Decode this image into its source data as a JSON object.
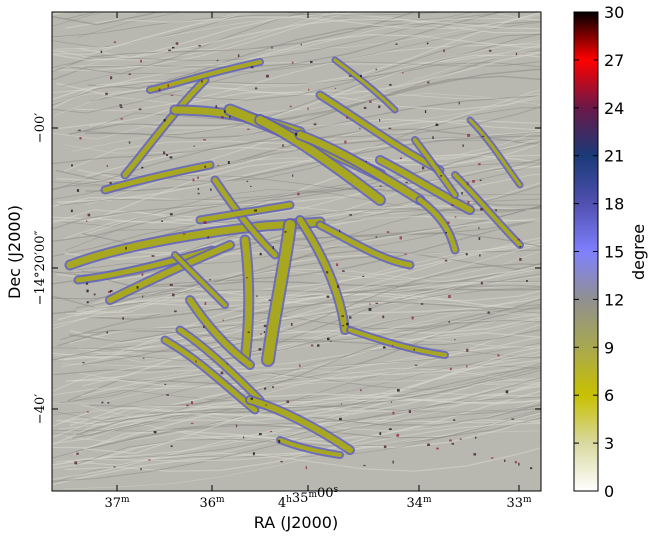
{
  "chart_data": {
    "type": "heatmap",
    "title": "",
    "xlabel": "RA (J2000)",
    "ylabel": "Dec (J2000)",
    "x_ticks": [
      {
        "label": "37",
        "sup": "m"
      },
      {
        "label": "36",
        "sup": "m"
      },
      {
        "label": "4",
        "sup": "h",
        "label2": "35",
        "sup2": "m",
        "label3": "00",
        "sup3": "s"
      },
      {
        "label": "34",
        "sup": "m"
      },
      {
        "label": "33",
        "sup": "m"
      }
    ],
    "y_ticks": [
      {
        "label": "−00′"
      },
      {
        "label": "−14°20′00″"
      },
      {
        "label": "−40′"
      }
    ],
    "colorbar": {
      "label": "degree",
      "min": 0,
      "max": 30,
      "ticks": [
        "0",
        "3",
        "6",
        "9",
        "12",
        "15",
        "18",
        "21",
        "24",
        "27",
        "30"
      ],
      "colors": [
        "#ffffff",
        "#d8d8a0",
        "#c8c000",
        "#a8a850",
        "#909090",
        "#8080ff",
        "#5050b0",
        "#1a3a78",
        "#6a1848",
        "#ff0000",
        "#000000"
      ]
    },
    "background_color": "#b8b8b0",
    "filament_color": "#a8a820",
    "edge_color": "#6060b8"
  }
}
